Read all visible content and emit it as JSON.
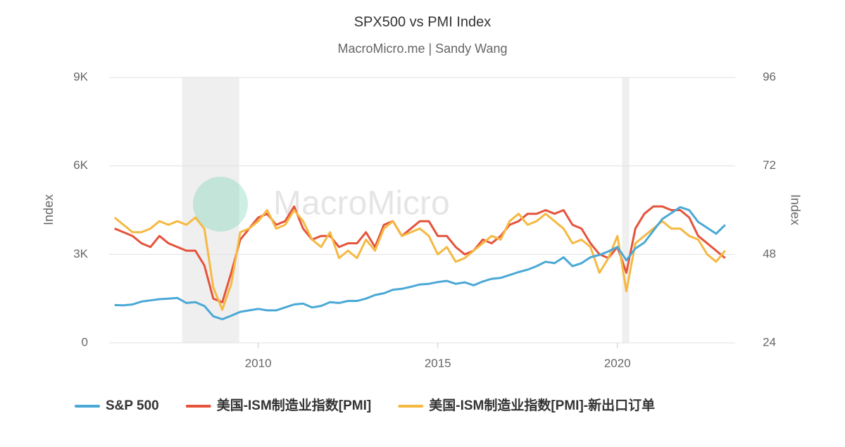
{
  "chart_data": {
    "type": "line",
    "title": "SPX500 vs PMI Index",
    "subtitle": "MacroMicro.me | Sandy Wang",
    "watermark": "MacroMicro",
    "y_label": "Index",
    "y2_label": "Index",
    "x": [
      2006,
      2006.25,
      2006.5,
      2006.75,
      2007,
      2007.25,
      2007.5,
      2007.75,
      2008,
      2008.25,
      2008.5,
      2008.75,
      2009,
      2009.25,
      2009.5,
      2009.75,
      2010,
      2010.25,
      2010.5,
      2010.75,
      2011,
      2011.25,
      2011.5,
      2011.75,
      2012,
      2012.25,
      2012.5,
      2012.75,
      2013,
      2013.25,
      2013.5,
      2013.75,
      2014,
      2014.25,
      2014.5,
      2014.75,
      2015,
      2015.25,
      2015.5,
      2015.75,
      2016,
      2016.25,
      2016.5,
      2016.75,
      2017,
      2017.25,
      2017.5,
      2017.75,
      2018,
      2018.25,
      2018.5,
      2018.75,
      2019,
      2019.25,
      2019.5,
      2019.75,
      2020,
      2020.25,
      2020.5,
      2020.75,
      2021,
      2021.25,
      2021.5,
      2021.75,
      2022,
      2022.25,
      2022.5,
      2022.75,
      2023
    ],
    "series": [
      {
        "name": "S&P 500",
        "color": "#4aa8d6",
        "values": [
          1280,
          1270,
          1300,
          1400,
          1440,
          1480,
          1500,
          1520,
          1350,
          1380,
          1250,
          900,
          800,
          920,
          1050,
          1100,
          1150,
          1100,
          1100,
          1200,
          1300,
          1330,
          1200,
          1250,
          1380,
          1350,
          1420,
          1420,
          1500,
          1620,
          1680,
          1800,
          1830,
          1900,
          1980,
          2000,
          2060,
          2100,
          2000,
          2050,
          1950,
          2080,
          2170,
          2200,
          2300,
          2400,
          2480,
          2600,
          2750,
          2700,
          2900,
          2600,
          2700,
          2900,
          2980,
          3100,
          3250,
          2800,
          3200,
          3400,
          3800,
          4200,
          4400,
          4600,
          4500,
          4100,
          3900,
          3700,
          4000
        ]
      },
      {
        "name": "美国-ISM制造业指数[PMI]",
        "color": "#e5533c",
        "axis": "y2",
        "values": [
          55,
          54,
          53,
          51,
          50,
          53,
          51,
          50,
          49,
          49,
          45,
          36,
          35,
          43,
          52,
          55,
          58,
          59,
          56,
          57,
          61,
          55,
          52,
          53,
          53,
          50,
          51,
          51,
          54,
          50,
          56,
          57,
          53,
          55,
          57,
          57,
          53,
          53,
          50,
          48,
          49,
          52,
          51,
          53,
          56,
          57,
          59,
          59,
          60,
          59,
          60,
          56,
          55,
          51,
          48,
          47,
          50,
          43,
          55,
          59,
          61,
          61,
          60,
          60,
          58,
          53,
          51,
          49,
          47
        ]
      },
      {
        "name": "美国-ISM制造业指数[PMI]-新出口订单",
        "color": "#f5b942",
        "axis": "y2",
        "values": [
          58,
          56,
          54,
          54,
          55,
          57,
          56,
          57,
          56,
          58,
          55,
          39,
          33,
          40,
          54,
          55,
          57,
          60,
          55,
          56,
          60,
          57,
          52,
          50,
          54,
          47,
          49,
          47,
          52,
          49,
          55,
          57,
          53,
          54,
          55,
          53,
          48,
          50,
          46,
          47,
          49,
          51,
          53,
          52,
          57,
          59,
          56,
          57,
          59,
          57,
          55,
          51,
          52,
          50,
          43,
          47,
          53,
          38,
          51,
          53,
          55,
          57,
          55,
          55,
          53,
          52,
          48,
          46,
          49
        ]
      }
    ],
    "xlim": [
      2005.85,
      2023.2
    ],
    "xticks": [
      2010,
      2015,
      2020
    ],
    "ylim": [
      0,
      9000
    ],
    "yticks": [
      0,
      {
        "value": 3000,
        "label": "3K"
      },
      {
        "value": 6000,
        "label": "6K"
      },
      {
        "value": 9000,
        "label": "9K"
      }
    ],
    "y2lim": [
      24,
      96
    ],
    "y2ticks": [
      24,
      48,
      72,
      96
    ],
    "recessions": [
      [
        2007.88,
        2009.47
      ],
      [
        2020.13,
        2020.33
      ]
    ],
    "grid": true,
    "legend": "bottom"
  }
}
